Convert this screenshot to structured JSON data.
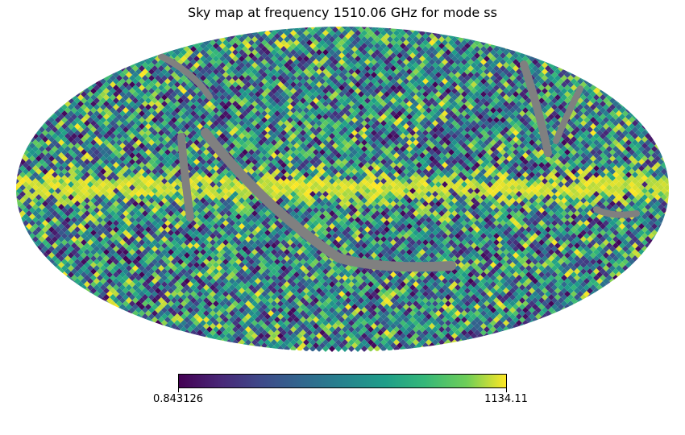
{
  "chart_data": {
    "type": "heatmap",
    "projection": "mollweide",
    "title": "Sky map at frequency 1510.06 GHz for mode ss",
    "colormap": "viridis",
    "missing_color": "#808080",
    "colorbar": {
      "min": 0.843126,
      "max": 1134.11,
      "min_label": "0.843126",
      "max_label": "1134.11",
      "orientation": "horizontal"
    },
    "features": {
      "galactic_plane": "bright band (values near max) along the equator",
      "masked_stripes": "grey scan-pattern stripes of missing pixels"
    }
  }
}
